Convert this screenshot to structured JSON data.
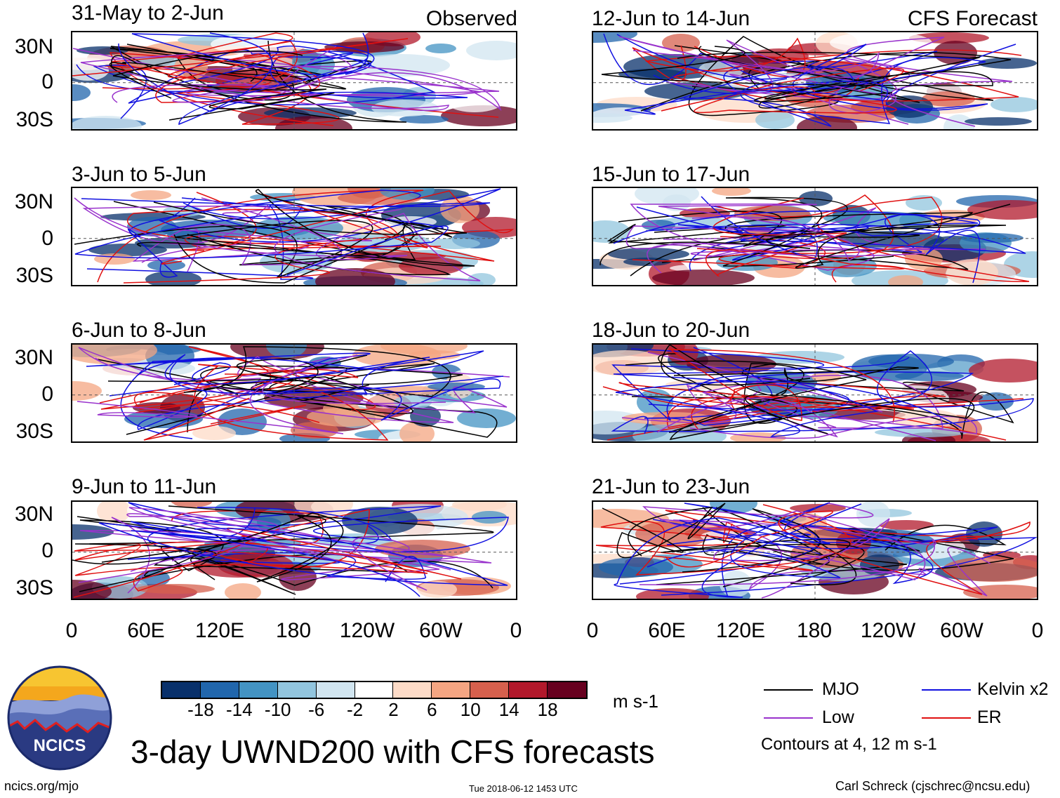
{
  "figure": {
    "title": "3-day UWND200 with CFS forecasts",
    "units": "m s-1",
    "contour_note": "Contours at 4, 12 m s-1",
    "logo_text": "NCICS",
    "url": "ncics.org/mjo",
    "timestamp": "Tue 2018-06-12 1453 UTC",
    "author": "Carl Schreck (cjschrec@ncsu.edu)"
  },
  "columns": {
    "left_label": "Observed",
    "right_label": "CFS Forecast"
  },
  "panels_left": [
    {
      "title": "31-May to 2-Jun"
    },
    {
      "title": "3-Jun to 5-Jun"
    },
    {
      "title": "6-Jun to 8-Jun"
    },
    {
      "title": "9-Jun to 11-Jun"
    }
  ],
  "panels_right": [
    {
      "title": "12-Jun to 14-Jun"
    },
    {
      "title": "15-Jun to 17-Jun"
    },
    {
      "title": "18-Jun to 20-Jun"
    },
    {
      "title": "21-Jun to 23-Jun"
    }
  ],
  "axes": {
    "y_ticks": [
      "30N",
      "0",
      "30S"
    ],
    "x_ticks": [
      "0",
      "60E",
      "120E",
      "180",
      "120W",
      "60W",
      "0"
    ]
  },
  "colorbar": {
    "colors": [
      "#08306b",
      "#2166ac",
      "#4393c3",
      "#92c5de",
      "#d1e5f0",
      "#ffffff",
      "#fddbc7",
      "#f4a582",
      "#d6604d",
      "#b2182b",
      "#67001f"
    ],
    "labels": [
      "-18",
      "-14",
      "-10",
      "-6",
      "-2",
      "2",
      "6",
      "10",
      "14",
      "18"
    ]
  },
  "legend": [
    {
      "label": "MJO",
      "color": "#000000"
    },
    {
      "label": "Kelvin x2",
      "color": "#1010e0"
    },
    {
      "label": "Low",
      "color": "#9932cc"
    },
    {
      "label": "ER",
      "color": "#e01010"
    }
  ]
}
